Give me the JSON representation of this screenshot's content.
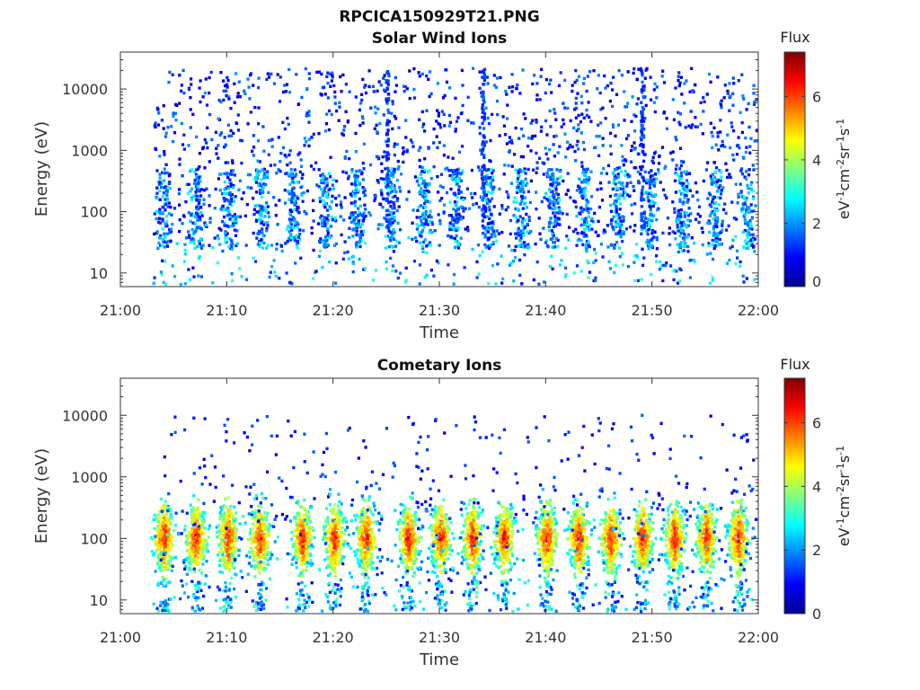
{
  "figure": {
    "filename": "RPCICA150929T21.PNG"
  },
  "colorbar": {
    "title": "Flux",
    "unit_label": "eV-1cm-2sr-1s-1",
    "ticks": [
      "0",
      "2",
      "4",
      "6"
    ],
    "range": [
      0,
      7.4
    ],
    "colormap": "jet"
  },
  "chart_data": [
    {
      "type": "heatmap",
      "title": "Solar Wind Ions",
      "xlabel": "Time",
      "ylabel": "Energy (eV)",
      "x_ticks": [
        "21:00",
        "21:10",
        "21:20",
        "21:30",
        "21:40",
        "21:50",
        "22:00"
      ],
      "x_range": [
        "21:00",
        "22:00"
      ],
      "y_ticks": [
        "10",
        "100",
        "1000",
        "10000"
      ],
      "y_scale": "log",
      "y_range": [
        6,
        40000
      ],
      "z_range": [
        0,
        7.4
      ],
      "data_start": "21:03",
      "data_end": "22:00",
      "features": [
        {
          "energy_range": [
            10,
            20000
          ],
          "flux_range": [
            0.5,
            2.5
          ],
          "description": "sparse low-flux dots across full energy range"
        },
        {
          "energy_range": [
            30,
            400
          ],
          "flux_range": [
            1,
            3
          ],
          "description": "repeating bursts roughly every 3 min"
        },
        {
          "time": "21:25",
          "energy_range": [
            50,
            20000
          ],
          "flux": 1.5,
          "description": "vertical stripe"
        },
        {
          "time": "21:34",
          "energy_range": [
            50,
            20000
          ],
          "flux": 1.5,
          "description": "vertical stripe"
        },
        {
          "time": "21:49",
          "energy_range": [
            50,
            20000
          ],
          "flux": 1.5,
          "description": "vertical stripe"
        }
      ]
    },
    {
      "type": "heatmap",
      "title": "Cometary Ions",
      "xlabel": "Time",
      "ylabel": "Energy (eV)",
      "x_ticks": [
        "21:00",
        "21:10",
        "21:20",
        "21:30",
        "21:40",
        "21:50",
        "22:00"
      ],
      "x_range": [
        "21:00",
        "22:00"
      ],
      "y_ticks": [
        "10",
        "100",
        "1000",
        "10000"
      ],
      "y_scale": "log",
      "y_range": [
        6,
        40000
      ],
      "z_range": [
        0,
        7.4
      ],
      "data_start": "21:03",
      "data_end": "22:00",
      "burst_times": [
        "21:04",
        "21:07",
        "21:10",
        "21:13",
        "21:17",
        "21:20",
        "21:23",
        "21:27",
        "21:30",
        "21:33",
        "21:36",
        "21:40",
        "21:43",
        "21:46",
        "21:49",
        "21:52",
        "21:55",
        "21:58"
      ],
      "burst_energy_range": [
        20,
        600
      ],
      "burst_peak_energy": 100,
      "burst_peak_flux": 6.5,
      "background_energy_range": [
        200,
        10000
      ],
      "background_flux": 1
    }
  ]
}
